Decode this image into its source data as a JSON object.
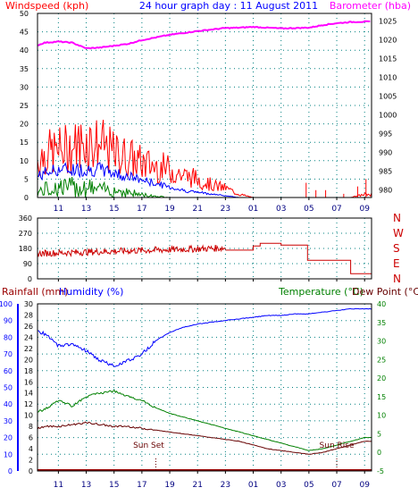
{
  "colors": {
    "wind_gust": "#ff0000",
    "wind_avg": "#0000ff",
    "wind_low": "#008000",
    "barometer": "#ff00ff",
    "direction": "#cc0000",
    "humidity": "#0000ff",
    "temperature": "#008000",
    "dew_point": "#660000",
    "rainfall": "#990000",
    "grid": "#008080",
    "axis_green": "#008000",
    "axis_blue": "#0000ff"
  },
  "header": {
    "left": "Windspeed (kph)",
    "title": "24 hour graph day : 11 August 2011",
    "right": "Barometer (hba)"
  },
  "time_ticks": [
    "11",
    "13",
    "15",
    "17",
    "19",
    "21",
    "23",
    "01",
    "03",
    "05",
    "07",
    "09"
  ],
  "chart_data": [
    {
      "type": "line",
      "panel": "wind-barometer",
      "y_left_label": "Windspeed (kph)",
      "y_right_label": "Barometer (hba)",
      "y_left_ticks": [
        "0",
        "5",
        "10",
        "15",
        "20",
        "25",
        "30",
        "35",
        "40",
        "45",
        "50"
      ],
      "y_right_ticks": [
        "980",
        "985",
        "990",
        "995",
        "1000",
        "1005",
        "1010",
        "1015",
        "1020",
        "1025"
      ],
      "ylim_left": [
        0,
        50
      ],
      "ylim_right": [
        978,
        1027
      ],
      "hours": [
        9.5,
        10,
        11,
        12,
        13,
        14,
        15,
        16,
        17,
        18,
        19,
        20,
        21,
        22,
        23,
        0,
        1,
        2,
        3,
        4,
        5,
        6,
        7,
        8,
        9
      ],
      "series": [
        {
          "key": "barometer",
          "values": [
            1018.5,
            1019.2,
            1019.5,
            1019.2,
            1017.7,
            1017.9,
            1018.4,
            1018.9,
            1019.9,
            1020.6,
            1021.3,
            1021.8,
            1022.3,
            1022.7,
            1023.1,
            1023.2,
            1023.4,
            1023.2,
            1023.0,
            1023.1,
            1023.2,
            1023.9,
            1024.4,
            1024.7,
            1024.8
          ]
        },
        {
          "key": "wind_gust_envelope",
          "values": [
            12,
            14,
            15,
            16,
            18,
            17,
            14,
            13,
            11,
            10,
            9,
            7,
            6,
            4,
            3,
            1,
            0,
            0,
            0,
            0,
            0,
            0,
            0,
            0,
            1
          ]
        },
        {
          "key": "wind_avg",
          "values": [
            6,
            7,
            8,
            8,
            8,
            8,
            7,
            6,
            5,
            4,
            3,
            2,
            1.5,
            1,
            0.5,
            0,
            0,
            0,
            0,
            0,
            0,
            0,
            0,
            0,
            0
          ]
        },
        {
          "key": "wind_low",
          "values": [
            2,
            3,
            4,
            4,
            4,
            3,
            3,
            2,
            1,
            0.5,
            0,
            0,
            0,
            0,
            0,
            0,
            0,
            0,
            0,
            0,
            0,
            0,
            0,
            0,
            0
          ]
        }
      ]
    },
    {
      "type": "line",
      "panel": "wind-direction",
      "y_left_ticks": [
        "0",
        "90",
        "180",
        "270",
        "360"
      ],
      "y_right_labels": [
        "N",
        "W",
        "S",
        "E",
        "N"
      ],
      "ylim": [
        0,
        360
      ],
      "hours": [
        9.5,
        11,
        13,
        15,
        17,
        19,
        21,
        22.9,
        23,
        1,
        1.5,
        3,
        4,
        4.9,
        5,
        7,
        8,
        9
      ],
      "values": [
        160,
        155,
        150,
        160,
        170,
        175,
        180,
        190,
        170,
        170,
        210,
        210,
        190,
        190,
        110,
        110,
        30,
        30
      ]
    },
    {
      "type": "line",
      "panel": "temp-humidity-rain",
      "labels": {
        "rainfall": "Rainfall (mm)",
        "humidity": "Humidity (%)",
        "temperature": "Temperature (°C)",
        "dew_point": "Dew Point (°C)"
      },
      "y_humidity_ticks": [
        "0",
        "10",
        "20",
        "30",
        "40",
        "50",
        "60",
        "70",
        "80",
        "90",
        "100"
      ],
      "y_rain_ticks": [
        "0",
        "2",
        "4",
        "6",
        "8",
        "10",
        "12",
        "14",
        "16",
        "18",
        "20",
        "22",
        "24",
        "26",
        "28",
        "30"
      ],
      "y_temp_ticks": [
        "-5",
        "0",
        "5",
        "10",
        "15",
        "20",
        "25",
        "30",
        "35",
        "40"
      ],
      "ylim_humidity": [
        0,
        100
      ],
      "ylim_temp": [
        -5,
        40
      ],
      "hours": [
        9.5,
        10,
        11,
        12,
        13,
        14,
        15,
        16,
        17,
        18,
        19,
        20,
        21,
        22,
        23,
        0,
        1,
        2,
        3,
        4,
        5,
        6,
        7,
        8,
        9
      ],
      "humidity": [
        84,
        82,
        75,
        76,
        72,
        66,
        63,
        66,
        70,
        78,
        83,
        86,
        88,
        89,
        90,
        91,
        92,
        93,
        93,
        94,
        94,
        95,
        96,
        97,
        97
      ],
      "temperature": [
        11,
        11.5,
        14,
        12.5,
        15,
        16,
        16.5,
        15,
        14,
        12,
        10.5,
        9.5,
        8.5,
        7.5,
        6.5,
        5.5,
        4.5,
        3.5,
        2.5,
        1.5,
        0.5,
        1,
        2,
        3,
        4
      ],
      "dew_point": [
        6.5,
        7,
        7,
        7.5,
        8,
        7.5,
        7,
        7,
        6.5,
        6,
        5.5,
        5,
        4.5,
        4,
        3.5,
        3,
        2,
        1,
        0.5,
        0,
        -0.5,
        0,
        1,
        2,
        3
      ],
      "rainfall": [
        0.1,
        0.1,
        0.1,
        0.1,
        0.1,
        0.1,
        0.1,
        0.1,
        0.1,
        0.1,
        0.1,
        0.1,
        0.1,
        0.1,
        0.1,
        0.1,
        0.1,
        0.1,
        0.1,
        0.1,
        0.1,
        0.1,
        0.1,
        0.1,
        0.1
      ],
      "annotations": [
        {
          "text": "Sun Set",
          "hour": 18.0
        },
        {
          "text": "Sun Rise",
          "hour": 7.0
        }
      ]
    }
  ]
}
